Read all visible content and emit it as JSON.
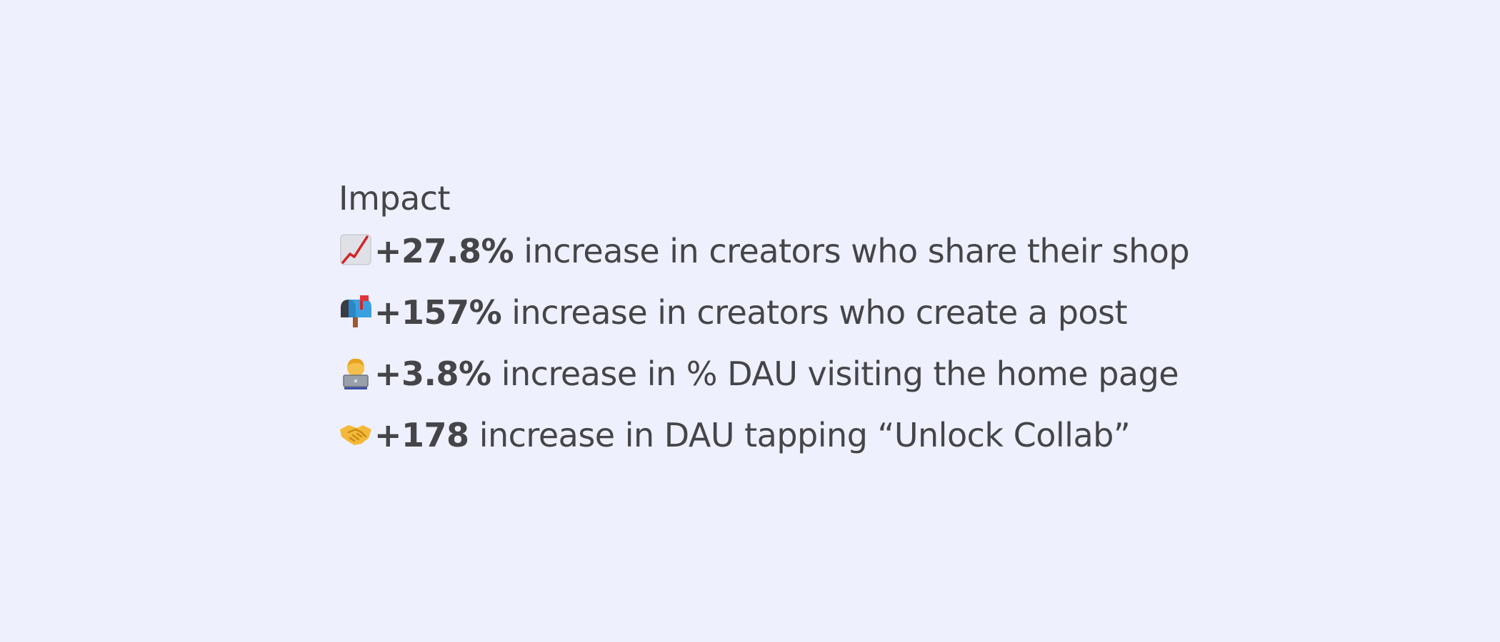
{
  "heading": "Impact",
  "items": [
    {
      "icon": "chart-increasing-icon",
      "value": "+27.8%",
      "description": " increase in creators who share their shop"
    },
    {
      "icon": "mailbox-icon",
      "value": "+157%",
      "description": " increase in creators who create a post"
    },
    {
      "icon": "person-at-laptop-icon",
      "value": "+3.8%",
      "description": " increase in % DAU visiting the home page"
    },
    {
      "icon": "handshake-icon",
      "value": "+178",
      "description": " increase in DAU tapping “Unlock Collab”"
    }
  ],
  "colors": {
    "background": "#eef0fd",
    "text": "#454549"
  }
}
